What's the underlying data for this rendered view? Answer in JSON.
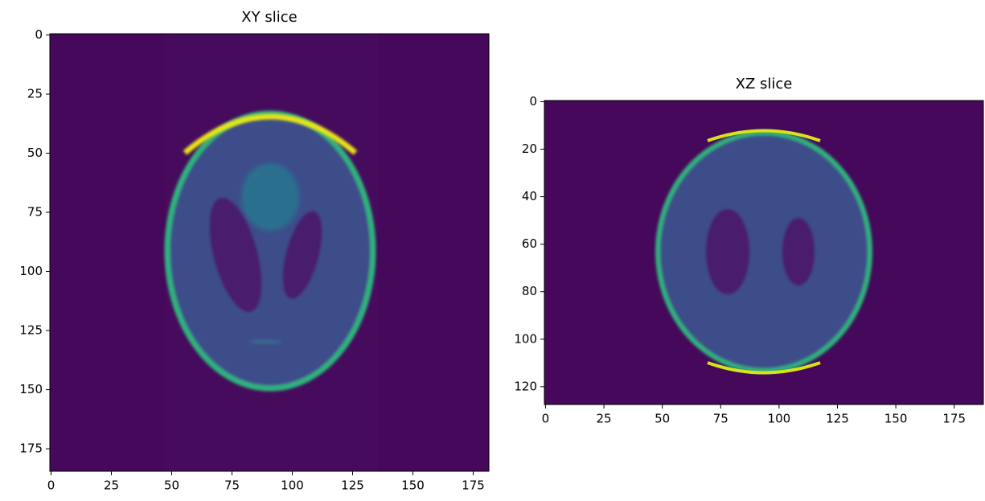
{
  "chart_data": [
    {
      "type": "image",
      "title": "XY slice",
      "xlim": [
        -0.5,
        181.5
      ],
      "ylim": [
        184.5,
        -0.5
      ],
      "xticks": [
        0,
        25,
        50,
        75,
        100,
        125,
        150,
        175
      ],
      "yticks": [
        0,
        25,
        50,
        75,
        100,
        125,
        150,
        175
      ]
    },
    {
      "type": "image",
      "title": "XZ slice",
      "xlim": [
        -0.5,
        187.5
      ],
      "ylim": [
        127.5,
        -0.5
      ],
      "xticks": [
        0,
        25,
        50,
        75,
        100,
        125,
        150,
        175
      ],
      "yticks": [
        0,
        20,
        40,
        60,
        80,
        100,
        120
      ]
    }
  ]
}
